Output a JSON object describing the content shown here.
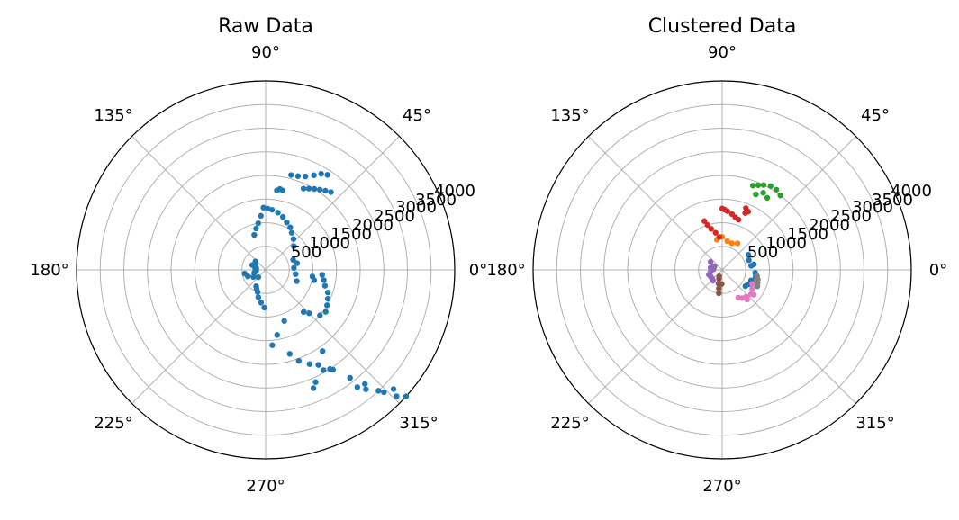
{
  "chart_data": [
    {
      "type": "scatter",
      "projection": "polar",
      "title": "Raw Data",
      "angle_ticks": [
        "0°",
        "45°",
        "90°",
        "135°",
        "180°",
        "225°",
        "270°",
        "315°"
      ],
      "radial_ticks": [
        "500",
        "1000",
        "1500",
        "2000",
        "2500",
        "3000",
        "3500",
        "4000"
      ],
      "rlim": [
        0,
        4000
      ],
      "grid": true,
      "series": [
        {
          "color": "#1f77b4",
          "points": [
            [
              4,
              600
            ],
            [
              12,
              680
            ],
            [
              -8,
              640
            ],
            [
              20,
              620
            ],
            [
              -20,
              700
            ],
            [
              40,
              780
            ],
            [
              48,
              880
            ],
            [
              55,
              960
            ],
            [
              60,
              1040
            ],
            [
              66,
              1100
            ],
            [
              72,
              1180
            ],
            [
              78,
              1240
            ],
            [
              84,
              1280
            ],
            [
              88,
              1300
            ],
            [
              92,
              1320
            ],
            [
              95,
              1150
            ],
            [
              99,
              1000
            ],
            [
              103,
              900
            ],
            [
              108,
              780
            ],
            [
              65,
              1900
            ],
            [
              62,
              1950
            ],
            [
              59,
              2000
            ],
            [
              56,
              2050
            ],
            [
              53,
              2100
            ],
            [
              50,
              2150
            ],
            [
              75,
              2080
            ],
            [
              71,
              2100
            ],
            [
              67,
              2150
            ],
            [
              63,
              2250
            ],
            [
              60,
              2350
            ],
            [
              57,
              2400
            ],
            [
              82,
              1700
            ],
            [
              78,
              1720
            ],
            [
              80,
              1740
            ],
            [
              140,
              280
            ],
            [
              160,
              300
            ],
            [
              175,
              220
            ],
            [
              185,
              200
            ],
            [
              195,
              250
            ],
            [
              210,
              300
            ],
            [
              225,
              220
            ],
            [
              200,
              400
            ],
            [
              190,
              450
            ],
            [
              170,
              200
            ],
            [
              150,
              250
            ],
            [
              240,
              400
            ],
            [
              255,
              600
            ],
            [
              262,
              700
            ],
            [
              268,
              800
            ],
            [
              250,
              500
            ],
            [
              245,
              450
            ],
            [
              -5,
              1200
            ],
            [
              -10,
              1250
            ],
            [
              -15,
              1300
            ],
            [
              -20,
              1400
            ],
            [
              -25,
              1450
            ],
            [
              -30,
              1500
            ],
            [
              -35,
              1550
            ],
            [
              -40,
              1500
            ],
            [
              -45,
              1300
            ],
            [
              -48,
              1200
            ],
            [
              -8,
              1000
            ],
            [
              -12,
              1050
            ],
            [
              -70,
              1150
            ],
            [
              -80,
              1400
            ],
            [
              -85,
              1600
            ],
            [
              -74,
              1850
            ],
            [
              -70,
              2050
            ],
            [
              -65,
              2200
            ],
            [
              -60,
              2450
            ],
            [
              -56,
              2550
            ],
            [
              -52,
              2900
            ],
            [
              -49,
              3200
            ],
            [
              -47,
              3500
            ],
            [
              -44,
              3850
            ],
            [
              -42,
              4000
            ],
            [
              -55,
              2100
            ],
            [
              -61,
              2300
            ],
            [
              -66,
              2600
            ],
            [
              -68,
              2700
            ],
            [
              -52,
              3150
            ],
            [
              -50,
              3300
            ],
            [
              -46,
              3600
            ],
            [
              -43,
              3700
            ],
            [
              -57,
              2500
            ]
          ]
        }
      ]
    },
    {
      "type": "scatter",
      "projection": "polar",
      "title": "Clustered Data",
      "angle_ticks": [
        "0°",
        "45°",
        "90°",
        "135°",
        "180°",
        "225°",
        "270°",
        "315°"
      ],
      "radial_ticks": [
        "500",
        "1000",
        "1500",
        "2000",
        "2500",
        "3000",
        "3500",
        "4000"
      ],
      "rlim": [
        0,
        4000
      ],
      "grid": true,
      "series": [
        {
          "color": "#1f77b4",
          "points": [
            [
              20,
              600
            ],
            [
              8,
              620
            ],
            [
              -5,
              700
            ],
            [
              -12,
              720
            ],
            [
              10,
              680
            ],
            [
              -20,
              650
            ],
            [
              -28,
              640
            ],
            [
              -35,
              600
            ],
            [
              30,
              640
            ]
          ]
        },
        {
          "color": "#ff7f0e",
          "points": [
            [
              60,
              650
            ],
            [
              70,
              600
            ],
            [
              80,
              620
            ],
            [
              90,
              700
            ],
            [
              100,
              650
            ]
          ]
        },
        {
          "color": "#2ca02c",
          "points": [
            [
              52,
              2000
            ],
            [
              56,
              2050
            ],
            [
              60,
              2050
            ],
            [
              64,
              2000
            ],
            [
              67,
              1950
            ],
            [
              70,
              1900
            ],
            [
              58,
              1800
            ],
            [
              62,
              1850
            ],
            [
              66,
              1750
            ]
          ]
        },
        {
          "color": "#d62728",
          "points": [
            [
              95,
              700
            ],
            [
              100,
              800
            ],
            [
              105,
              900
            ],
            [
              110,
              1100
            ],
            [
              108,
              1000
            ],
            [
              90,
              1300
            ],
            [
              88,
              1280
            ],
            [
              85,
              1250
            ],
            [
              80,
              1200
            ],
            [
              76,
              1150
            ],
            [
              72,
              1120
            ],
            [
              68,
              1300
            ],
            [
              66,
              1350
            ],
            [
              69,
              1400
            ]
          ]
        },
        {
          "color": "#9467bd",
          "points": [
            [
              145,
              300
            ],
            [
              160,
              200
            ],
            [
              170,
              250
            ],
            [
              180,
              220
            ],
            [
              190,
              250
            ],
            [
              200,
              300
            ],
            [
              210,
              280
            ],
            [
              220,
              280
            ],
            [
              230,
              300
            ],
            [
              175,
              180
            ],
            [
              155,
              180
            ]
          ]
        },
        {
          "color": "#8c564b",
          "points": [
            [
              250,
              200
            ],
            [
              255,
              300
            ],
            [
              260,
              400
            ],
            [
              262,
              500
            ],
            [
              245,
              150
            ],
            [
              268,
              300
            ]
          ]
        },
        {
          "color": "#e377c2",
          "points": [
            [
              -25,
              700
            ],
            [
              -32,
              750
            ],
            [
              -40,
              800
            ],
            [
              -48,
              760
            ],
            [
              -55,
              730
            ],
            [
              -60,
              680
            ],
            [
              -38,
              850
            ],
            [
              -50,
              820
            ]
          ]
        },
        {
          "color": "#7f7f7f",
          "points": [
            [
              -10,
              750
            ],
            [
              -15,
              780
            ],
            [
              -20,
              800
            ],
            [
              -25,
              820
            ],
            [
              -18,
              760
            ]
          ]
        }
      ]
    }
  ]
}
